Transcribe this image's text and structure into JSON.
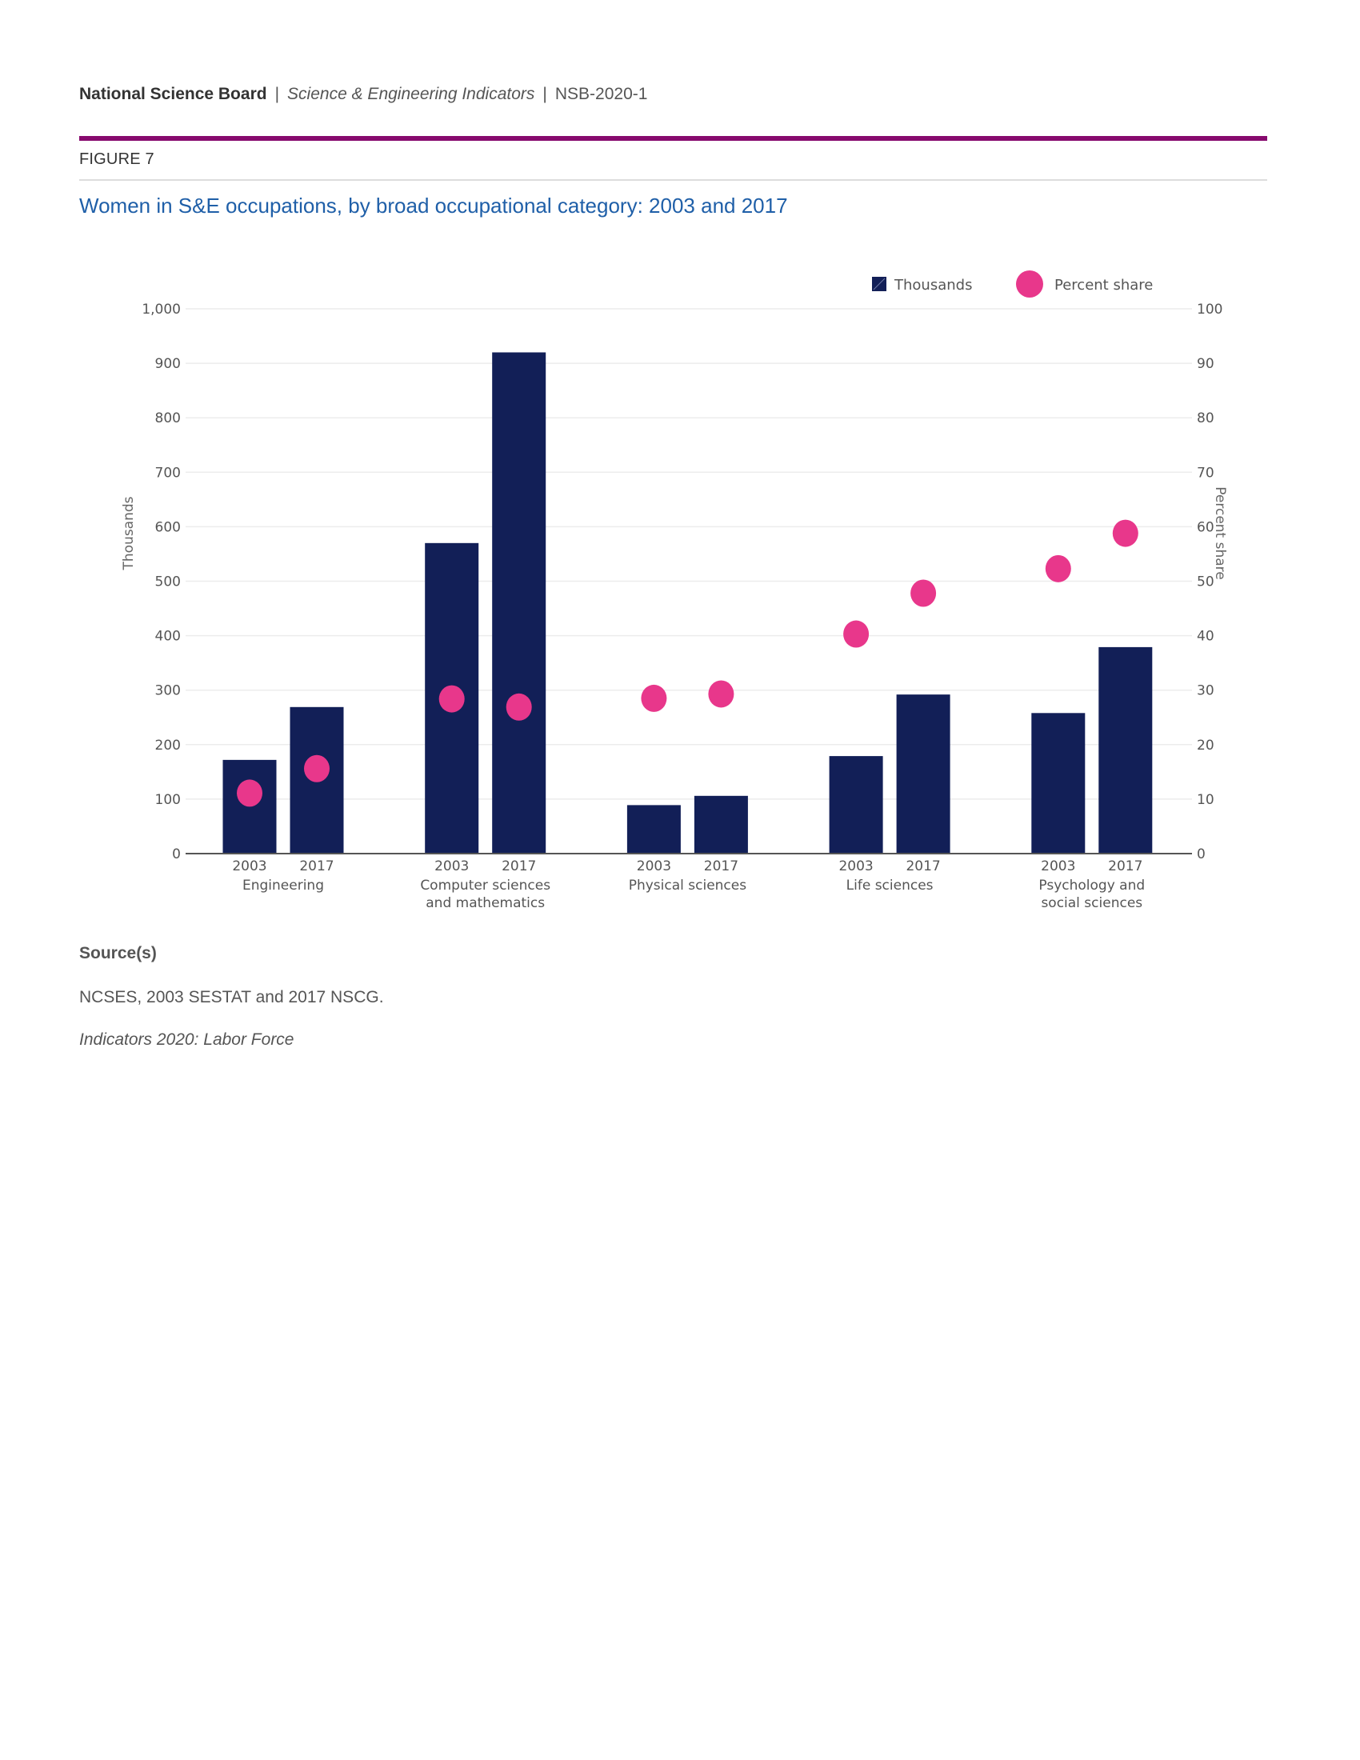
{
  "header": {
    "org": "National Science Board",
    "separator": "|",
    "publication": "Science & Engineering Indicators",
    "doc_id": "NSB-2020-1"
  },
  "figure": {
    "label": "FIGURE 7",
    "title": "Women in S&E occupations, by broad occupational category: 2003 and 2017"
  },
  "colors": {
    "accent_rule": "#870a6e",
    "title": "#1f5fa8",
    "bar": "#121f57",
    "dot": "#e8378b",
    "grid": "#ececec"
  },
  "legend": {
    "items": [
      {
        "label": "Thousands",
        "icon": "square-swatch-icon"
      },
      {
        "label": "Percent share",
        "icon": "circle-swatch-icon"
      }
    ]
  },
  "chart_data": {
    "type": "bar",
    "title": "Women in S&E occupations, by broad occupational category: 2003 and 2017",
    "categories": [
      {
        "name": [
          "Engineering"
        ],
        "years": [
          "2003",
          "2017"
        ]
      },
      {
        "name": [
          "Computer sciences",
          "and mathematics"
        ],
        "years": [
          "2003",
          "2017"
        ]
      },
      {
        "name": [
          "Physical sciences"
        ],
        "years": [
          "2003",
          "2017"
        ]
      },
      {
        "name": [
          "Life sciences"
        ],
        "years": [
          "2003",
          "2017"
        ]
      },
      {
        "name": [
          "Psychology and",
          "social sciences"
        ],
        "years": [
          "2003",
          "2017"
        ]
      }
    ],
    "series": [
      {
        "name": "Thousands",
        "type": "bar",
        "axis": "left",
        "values": [
          [
            172,
            269
          ],
          [
            570,
            920
          ],
          [
            89,
            106
          ],
          [
            179,
            292
          ],
          [
            258,
            379
          ]
        ]
      },
      {
        "name": "Percent share",
        "type": "scatter",
        "axis": "right",
        "values": [
          [
            11.1,
            15.6
          ],
          [
            28.4,
            26.9
          ],
          [
            28.5,
            29.3
          ],
          [
            40.3,
            47.8
          ],
          [
            52.3,
            58.8
          ]
        ]
      }
    ],
    "ylabel": "Thousands",
    "y2label": "Percent share",
    "ylim": [
      0,
      1000
    ],
    "y2lim": [
      0,
      100
    ],
    "yticks": [
      "0",
      "100",
      "200",
      "300",
      "400",
      "500",
      "600",
      "700",
      "800",
      "900",
      "1,000"
    ],
    "y2ticks": [
      "0",
      "10",
      "20",
      "30",
      "40",
      "50",
      "60",
      "70",
      "80",
      "90",
      "100"
    ],
    "grid": true,
    "legend_position": "top-right"
  },
  "source": {
    "heading": "Source(s)",
    "text": "NCSES, 2003 SESTAT and 2017 NSCG.",
    "reference": "Indicators 2020: Labor Force"
  }
}
